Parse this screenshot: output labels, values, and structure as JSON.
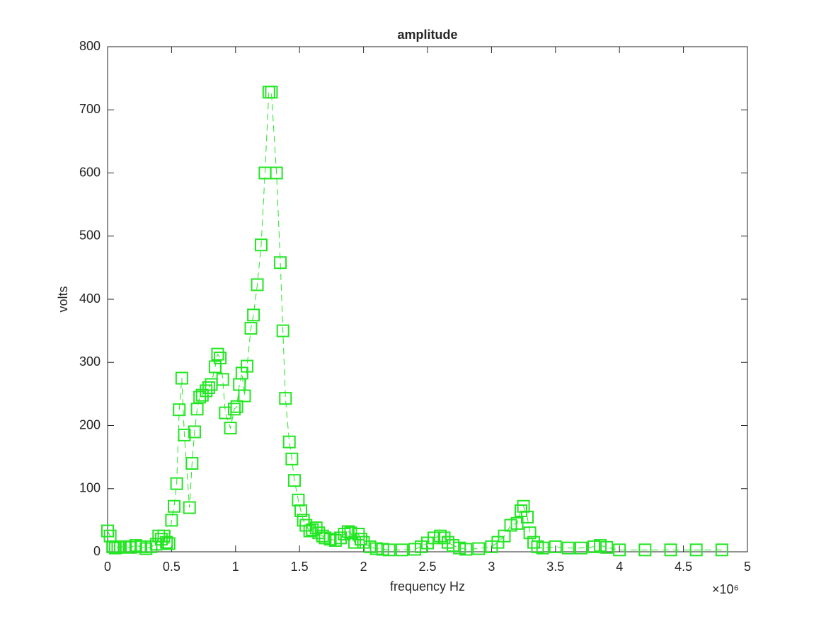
{
  "chart_data": {
    "type": "line",
    "title": "amplitude",
    "xlabel": "frequency Hz",
    "ylabel": "volts",
    "x_exponent_label": "×10⁶",
    "color": "#22e622",
    "marker": "square",
    "line_style": "dashed",
    "x": [
      0,
      20000,
      40000,
      60000,
      80000,
      100000,
      140000,
      180000,
      220000,
      260000,
      300000,
      340000,
      380000,
      400000,
      420000,
      440000,
      460000,
      480000,
      500000,
      520000,
      540000,
      560000,
      580000,
      600000,
      640000,
      660000,
      680000,
      700000,
      720000,
      740000,
      770000,
      790000,
      810000,
      840000,
      860000,
      880000,
      900000,
      920000,
      960000,
      990000,
      1010000,
      1030000,
      1050000,
      1070000,
      1090000,
      1120000,
      1140000,
      1170000,
      1200000,
      1230000,
      1260000,
      1280000,
      1320000,
      1350000,
      1370000,
      1390000,
      1420000,
      1440000,
      1460000,
      1490000,
      1510000,
      1530000,
      1550000,
      1580000,
      1600000,
      1630000,
      1650000,
      1680000,
      1700000,
      1740000,
      1780000,
      1820000,
      1850000,
      1880000,
      1900000,
      1930000,
      1960000,
      1980000,
      2000000,
      2050000,
      2100000,
      2150000,
      2200000,
      2300000,
      2400000,
      2450000,
      2500000,
      2550000,
      2600000,
      2630000,
      2660000,
      2700000,
      2750000,
      2800000,
      2900000,
      3000000,
      3050000,
      3100000,
      3150000,
      3200000,
      3230000,
      3250000,
      3280000,
      3300000,
      3330000,
      3360000,
      3400000,
      3500000,
      3600000,
      3700000,
      3800000,
      3850000,
      3900000,
      4000000,
      4200000,
      4400000,
      4600000,
      4800000
    ],
    "values": [
      33,
      25,
      8,
      6,
      7,
      8,
      8,
      7,
      10,
      8,
      5,
      8,
      12,
      25,
      20,
      25,
      15,
      13,
      50,
      72,
      108,
      225,
      275,
      185,
      70,
      140,
      190,
      226,
      245,
      248,
      255,
      260,
      265,
      293,
      313,
      307,
      273,
      220,
      196,
      226,
      230,
      265,
      283,
      247,
      294,
      354,
      375,
      423,
      486,
      600,
      728,
      728,
      600,
      458,
      350,
      243,
      174,
      147,
      113,
      82,
      65,
      50,
      42,
      33,
      35,
      38,
      30,
      25,
      22,
      20,
      18,
      22,
      28,
      32,
      30,
      15,
      28,
      20,
      15,
      8,
      5,
      4,
      3,
      3,
      4,
      8,
      14,
      22,
      25,
      22,
      15,
      10,
      6,
      4,
      5,
      8,
      15,
      25,
      42,
      45,
      65,
      72,
      55,
      30,
      15,
      8,
      6,
      8,
      6,
      6,
      8,
      10,
      7,
      3,
      3,
      3,
      3,
      3
    ],
    "xlim": [
      0,
      5000000
    ],
    "xticks": [
      0,
      {
        "value": 500000,
        "label": "0.5"
      },
      {
        "value": 1000000,
        "label": "1"
      },
      {
        "value": 1500000,
        "label": "1.5"
      },
      {
        "value": 2000000,
        "label": "2"
      },
      {
        "value": 2500000,
        "label": "2.5"
      },
      {
        "value": 3000000,
        "label": "3"
      },
      {
        "value": 3500000,
        "label": "3.5"
      },
      {
        "value": 4000000,
        "label": "4"
      },
      {
        "value": 4500000,
        "label": "4.5"
      },
      {
        "value": 5000000,
        "label": "5"
      }
    ],
    "ylim": [
      0,
      800
    ],
    "yticks": [
      0,
      100,
      200,
      300,
      400,
      500,
      600,
      700,
      800
    ],
    "grid": false
  }
}
